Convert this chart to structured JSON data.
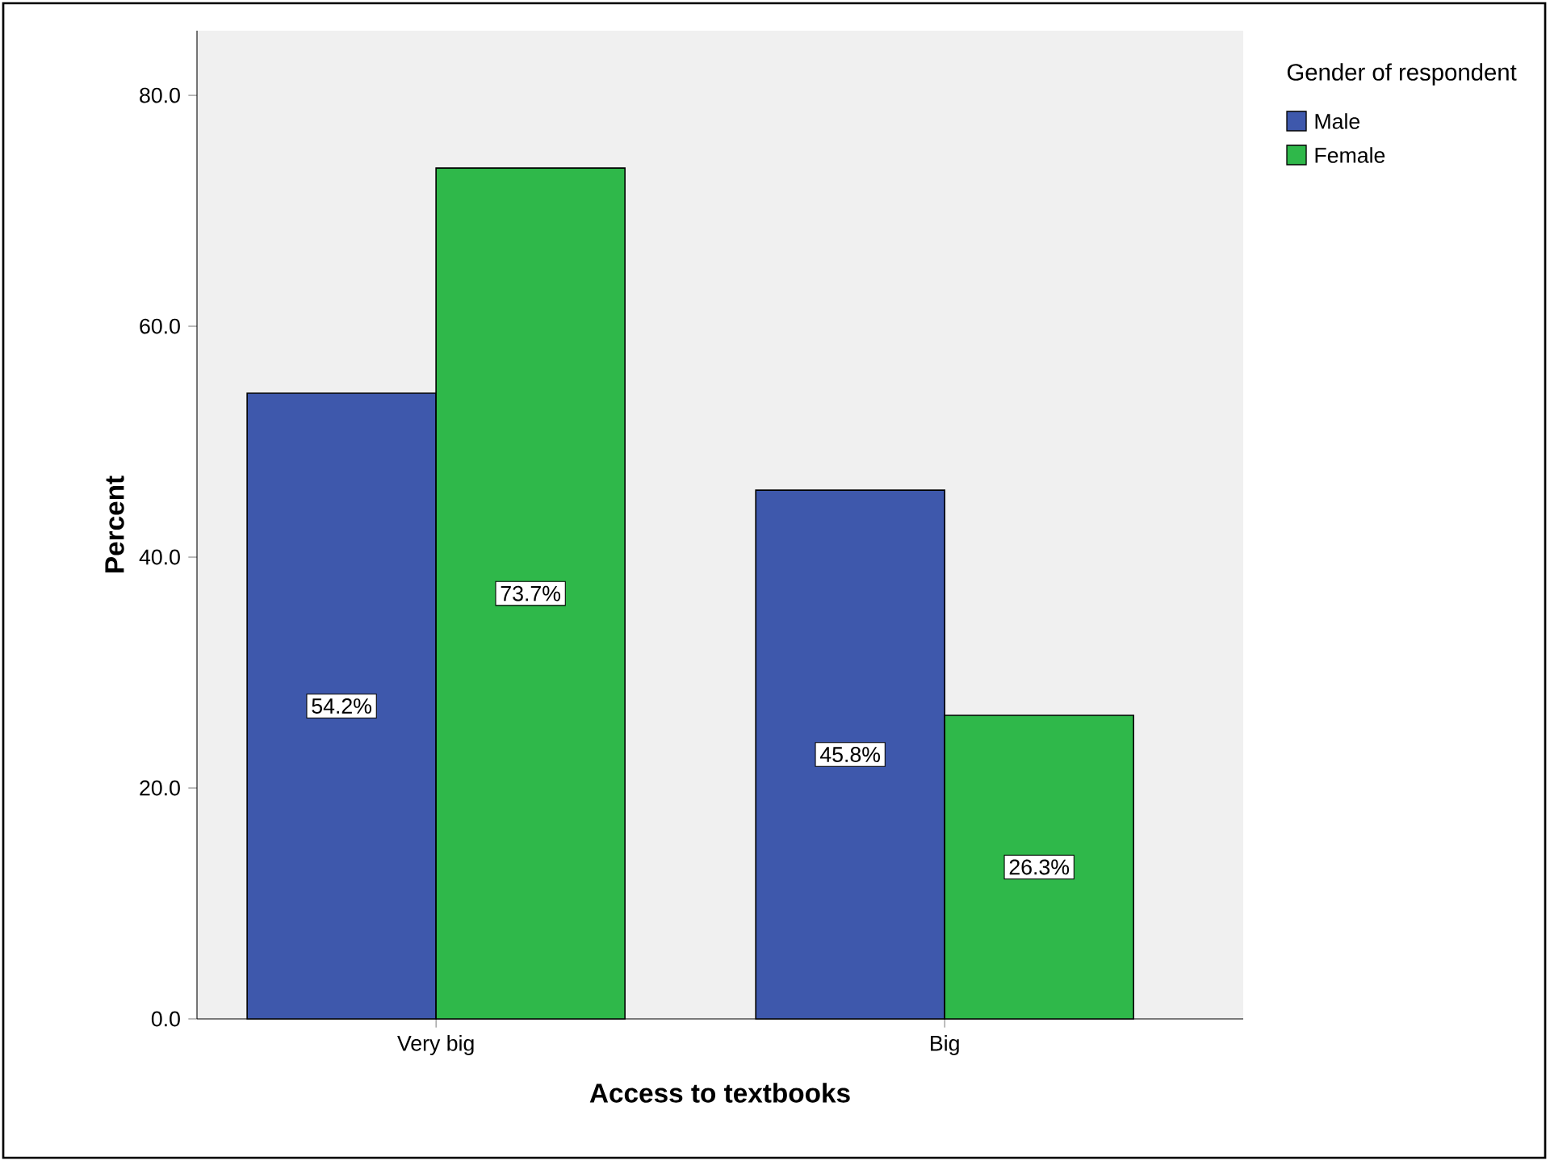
{
  "chart_data": {
    "type": "bar",
    "xlabel": "Access to textbooks",
    "ylabel": "Percent",
    "legend_title": "Gender of respondent",
    "categories": [
      "Very big",
      "Big"
    ],
    "series": [
      {
        "name": "Male",
        "color": "#3e58ac",
        "values": [
          54.2,
          45.8
        ],
        "value_labels": [
          "54.2%",
          "45.8%"
        ]
      },
      {
        "name": "Female",
        "color": "#2fb84a",
        "values": [
          73.7,
          26.3
        ],
        "value_labels": [
          "73.7%",
          "26.3%"
        ]
      }
    ],
    "ylim": [
      0,
      85.6
    ],
    "yticks": [
      {
        "value": 0,
        "label": "0.0"
      },
      {
        "value": 20,
        "label": "20.0"
      },
      {
        "value": 40,
        "label": "40.0"
      },
      {
        "value": 60,
        "label": "60.0"
      },
      {
        "value": 80,
        "label": "80.0"
      }
    ],
    "grid": false,
    "legend": "top right"
  }
}
